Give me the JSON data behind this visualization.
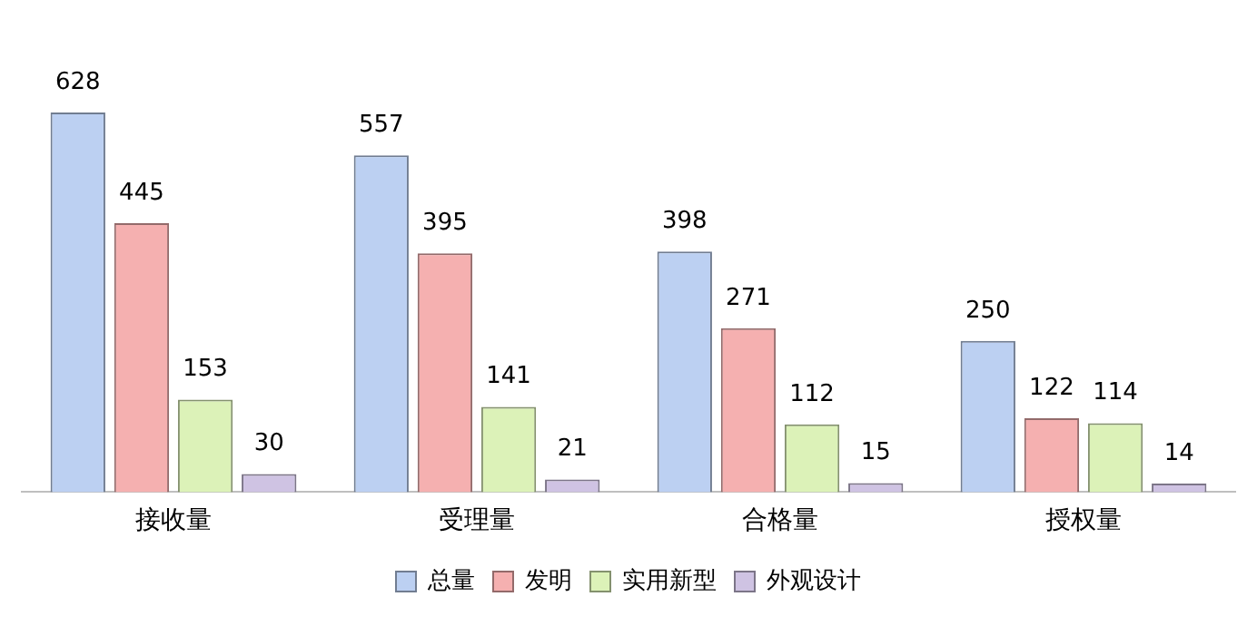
{
  "chart_data": {
    "type": "bar",
    "categories": [
      "接收量",
      "受理量",
      "合格量",
      "授权量"
    ],
    "series": [
      {
        "name": "总量",
        "color": "#bcd0f2",
        "values": [
          628,
          557,
          398,
          250
        ]
      },
      {
        "name": "发明",
        "color": "#f5b0b0",
        "values": [
          445,
          395,
          271,
          122
        ]
      },
      {
        "name": "实用新型",
        "color": "#dcf2b8",
        "values": [
          153,
          141,
          112,
          114
        ]
      },
      {
        "name": "外观设计",
        "color": "#cfc3e3",
        "values": [
          30,
          21,
          15,
          14
        ]
      }
    ],
    "data_labels": true,
    "grid": false,
    "legend": "bottom"
  }
}
